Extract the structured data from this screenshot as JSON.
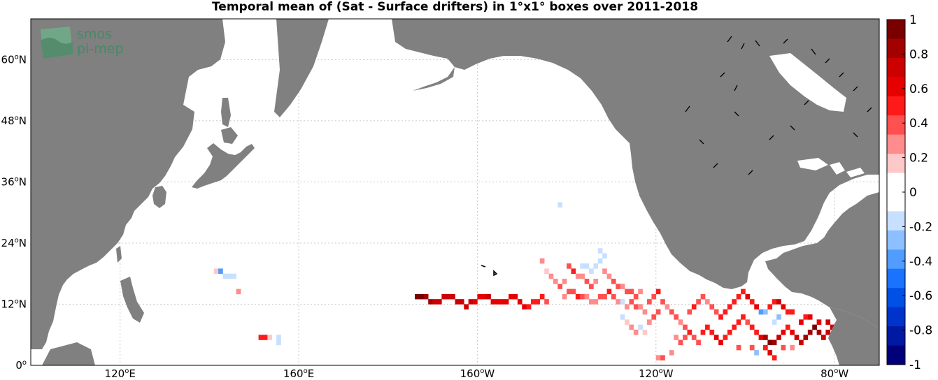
{
  "title": "Temporal mean of (Sat - Surface drifters) in 1°x1° boxes over 2011-2018",
  "logo": {
    "line1": "smos",
    "line2": "pi-mep"
  },
  "map_extent": {
    "lon_min": 100,
    "lon_max": 290,
    "lat_min": 0,
    "lat_max": 68
  },
  "lat_ticks": [
    {
      "value": 0,
      "label": "0",
      "suffix": ""
    },
    {
      "value": 12,
      "label": "12",
      "suffix": "N"
    },
    {
      "value": 24,
      "label": "24",
      "suffix": "N"
    },
    {
      "value": 36,
      "label": "36",
      "suffix": "N"
    },
    {
      "value": 48,
      "label": "48",
      "suffix": "N"
    },
    {
      "value": 60,
      "label": "60",
      "suffix": "N"
    }
  ],
  "lon_ticks": [
    {
      "value": 120,
      "label": "120",
      "suffix": "E"
    },
    {
      "value": 160,
      "label": "160",
      "suffix": "E"
    },
    {
      "value": 200,
      "label": "160",
      "suffix": "W"
    },
    {
      "value": 240,
      "label": "120",
      "suffix": "W"
    },
    {
      "value": 280,
      "label": "80",
      "suffix": "W"
    }
  ],
  "colors": {
    "land": "#808080",
    "coast": "#000000",
    "grid": "#c8c8c8"
  },
  "colorbar": {
    "range": [
      -1,
      1
    ],
    "labels": [
      "1",
      "0.8",
      "0.6",
      "0.4",
      "0.2",
      "0",
      "-0.2",
      "-0.4",
      "-0.6",
      "-0.8",
      "-1"
    ],
    "colors": [
      "#7a0000",
      "#a30000",
      "#cc0000",
      "#e60000",
      "#ff1a1a",
      "#ff5050",
      "#ff8c8c",
      "#ffc8c8",
      "#ffffff",
      "#ffffff",
      "#c8e0ff",
      "#8cbfff",
      "#509cff",
      "#1a73ff",
      "#0050e6",
      "#0033cc",
      "#0019a3",
      "#00007a"
    ]
  },
  "bins": [
    {
      "lon": 186,
      "lat": 13,
      "v": 0.9
    },
    {
      "lon": 187,
      "lat": 13,
      "v": 0.9
    },
    {
      "lon": 188,
      "lat": 13,
      "v": 0.8
    },
    {
      "lon": 189,
      "lat": 12,
      "v": 0.8
    },
    {
      "lon": 190,
      "lat": 12,
      "v": 0.75
    },
    {
      "lon": 191,
      "lat": 12,
      "v": 0.75
    },
    {
      "lon": 192,
      "lat": 13,
      "v": 0.75
    },
    {
      "lon": 193,
      "lat": 13,
      "v": 0.75
    },
    {
      "lon": 194,
      "lat": 13,
      "v": 0.7
    },
    {
      "lon": 195,
      "lat": 12,
      "v": 0.7
    },
    {
      "lon": 196,
      "lat": 12,
      "v": 0.7
    },
    {
      "lon": 197,
      "lat": 11,
      "v": 0.75
    },
    {
      "lon": 198,
      "lat": 12,
      "v": 0.7
    },
    {
      "lon": 199,
      "lat": 12,
      "v": 0.65
    },
    {
      "lon": 200,
      "lat": 13,
      "v": 0.65
    },
    {
      "lon": 201,
      "lat": 13,
      "v": 0.65
    },
    {
      "lon": 202,
      "lat": 13,
      "v": 0.7
    },
    {
      "lon": 203,
      "lat": 12,
      "v": 0.65
    },
    {
      "lon": 204,
      "lat": 12,
      "v": 0.65
    },
    {
      "lon": 205,
      "lat": 12,
      "v": 0.6
    },
    {
      "lon": 206,
      "lat": 12,
      "v": 0.6
    },
    {
      "lon": 207,
      "lat": 13,
      "v": 0.6
    },
    {
      "lon": 208,
      "lat": 13,
      "v": 0.65
    },
    {
      "lon": 209,
      "lat": 12,
      "v": 0.6
    },
    {
      "lon": 210,
      "lat": 11,
      "v": 0.6
    },
    {
      "lon": 211,
      "lat": 11,
      "v": 0.55
    },
    {
      "lon": 212,
      "lat": 12,
      "v": 0.55
    },
    {
      "lon": 213,
      "lat": 12,
      "v": 0.5
    },
    {
      "lon": 214,
      "lat": 13,
      "v": 0.45
    },
    {
      "lon": 215,
      "lat": 12,
      "v": 0.4
    },
    {
      "lon": 141,
      "lat": 18,
      "v": 0.2
    },
    {
      "lon": 142,
      "lat": 18,
      "v": -0.4
    },
    {
      "lon": 143,
      "lat": 17,
      "v": -0.2
    },
    {
      "lon": 144,
      "lat": 17,
      "v": -0.2
    },
    {
      "lon": 145,
      "lat": 17,
      "v": -0.2
    },
    {
      "lon": 146,
      "lat": 14,
      "v": 0.3
    },
    {
      "lon": 151,
      "lat": 5,
      "v": 0.45
    },
    {
      "lon": 152,
      "lat": 5,
      "v": 0.45
    },
    {
      "lon": 153,
      "lat": 5,
      "v": 0.2
    },
    {
      "lon": 155,
      "lat": 5,
      "v": -0.2
    },
    {
      "lon": 155,
      "lat": 4,
      "v": -0.2
    },
    {
      "lon": 218,
      "lat": 31,
      "v": -0.2
    },
    {
      "lon": 214,
      "lat": 20,
      "v": 0.3
    },
    {
      "lon": 215,
      "lat": 18,
      "v": 0.2
    },
    {
      "lon": 216,
      "lat": 17,
      "v": 0.25
    },
    {
      "lon": 217,
      "lat": 16,
      "v": 0.3
    },
    {
      "lon": 218,
      "lat": 15,
      "v": 0.35
    },
    {
      "lon": 219,
      "lat": 16,
      "v": 0.25
    },
    {
      "lon": 220,
      "lat": 19,
      "v": 0.4
    },
    {
      "lon": 221,
      "lat": 18,
      "v": 0.45
    },
    {
      "lon": 222,
      "lat": 17,
      "v": 0.3
    },
    {
      "lon": 223,
      "lat": 19,
      "v": -0.2
    },
    {
      "lon": 224,
      "lat": 19,
      "v": -0.2
    },
    {
      "lon": 225,
      "lat": 18,
      "v": -0.2
    },
    {
      "lon": 226,
      "lat": 19,
      "v": -0.2
    },
    {
      "lon": 227,
      "lat": 20,
      "v": -0.2
    },
    {
      "lon": 228,
      "lat": 21,
      "v": -0.2
    },
    {
      "lon": 227,
      "lat": 22,
      "v": -0.2
    },
    {
      "lon": 223,
      "lat": 17,
      "v": 0.3
    },
    {
      "lon": 224,
      "lat": 16,
      "v": 0.35
    },
    {
      "lon": 225,
      "lat": 15,
      "v": 0.4
    },
    {
      "lon": 226,
      "lat": 16,
      "v": 0.3
    },
    {
      "lon": 228,
      "lat": 18,
      "v": 0.25
    },
    {
      "lon": 229,
      "lat": 17,
      "v": 0.3
    },
    {
      "lon": 230,
      "lat": 16,
      "v": 0.35
    },
    {
      "lon": 231,
      "lat": 15,
      "v": 0.4
    },
    {
      "lon": 232,
      "lat": 15,
      "v": 0.3
    },
    {
      "lon": 233,
      "lat": 14,
      "v": 0.35
    },
    {
      "lon": 234,
      "lat": 14,
      "v": 0.4
    },
    {
      "lon": 235,
      "lat": 13,
      "v": 0.35
    },
    {
      "lon": 236,
      "lat": 14,
      "v": 0.3
    },
    {
      "lon": 219,
      "lat": 13,
      "v": 0.3
    },
    {
      "lon": 220,
      "lat": 14,
      "v": 0.35
    },
    {
      "lon": 221,
      "lat": 14,
      "v": 0.4
    },
    {
      "lon": 222,
      "lat": 13,
      "v": 0.45
    },
    {
      "lon": 223,
      "lat": 13,
      "v": 0.4
    },
    {
      "lon": 224,
      "lat": 13,
      "v": 0.3
    },
    {
      "lon": 225,
      "lat": 12,
      "v": 0.25
    },
    {
      "lon": 226,
      "lat": 12,
      "v": 0.3
    },
    {
      "lon": 227,
      "lat": 13,
      "v": 0.35
    },
    {
      "lon": 228,
      "lat": 13,
      "v": 0.4
    },
    {
      "lon": 229,
      "lat": 14,
      "v": 0.45
    },
    {
      "lon": 230,
      "lat": 13,
      "v": 0.35
    },
    {
      "lon": 231,
      "lat": 12,
      "v": 0.3
    },
    {
      "lon": 232,
      "lat": 12,
      "v": -0.2
    },
    {
      "lon": 233,
      "lat": 11,
      "v": 0.3
    },
    {
      "lon": 234,
      "lat": 12,
      "v": 0.35
    },
    {
      "lon": 235,
      "lat": 11,
      "v": 0.4
    },
    {
      "lon": 236,
      "lat": 11,
      "v": 0.3
    },
    {
      "lon": 237,
      "lat": 10,
      "v": 0.25
    },
    {
      "lon": 232,
      "lat": 9,
      "v": -0.2
    },
    {
      "lon": 233,
      "lat": 8,
      "v": 0.2
    },
    {
      "lon": 234,
      "lat": 7,
      "v": 0.3
    },
    {
      "lon": 235,
      "lat": 6,
      "v": 0.3
    },
    {
      "lon": 236,
      "lat": 7,
      "v": -0.2
    },
    {
      "lon": 237,
      "lat": 6,
      "v": 0.2
    },
    {
      "lon": 238,
      "lat": 8,
      "v": 0.3
    },
    {
      "lon": 239,
      "lat": 9,
      "v": 0.35
    },
    {
      "lon": 240,
      "lat": 10,
      "v": 0.4
    },
    {
      "lon": 238,
      "lat": 12,
      "v": 0.35
    },
    {
      "lon": 239,
      "lat": 13,
      "v": 0.4
    },
    {
      "lon": 240,
      "lat": 14,
      "v": 0.45
    },
    {
      "lon": 241,
      "lat": 12,
      "v": 0.35
    },
    {
      "lon": 242,
      "lat": 11,
      "v": 0.3
    },
    {
      "lon": 243,
      "lat": 10,
      "v": 0.35
    },
    {
      "lon": 244,
      "lat": 9,
      "v": 0.4
    },
    {
      "lon": 245,
      "lat": 8,
      "v": 0.3
    },
    {
      "lon": 246,
      "lat": 7,
      "v": 0.35
    },
    {
      "lon": 247,
      "lat": 10,
      "v": 0.4
    },
    {
      "lon": 248,
      "lat": 11,
      "v": 0.45
    },
    {
      "lon": 249,
      "lat": 12,
      "v": 0.4
    },
    {
      "lon": 250,
      "lat": 13,
      "v": 0.35
    },
    {
      "lon": 251,
      "lat": 12,
      "v": 0.3
    },
    {
      "lon": 252,
      "lat": 11,
      "v": 0.35
    },
    {
      "lon": 253,
      "lat": 10,
      "v": 0.4
    },
    {
      "lon": 254,
      "lat": 9,
      "v": 0.45
    },
    {
      "lon": 255,
      "lat": 10,
      "v": 0.5
    },
    {
      "lon": 256,
      "lat": 11,
      "v": 0.55
    },
    {
      "lon": 257,
      "lat": 12,
      "v": 0.5
    },
    {
      "lon": 258,
      "lat": 13,
      "v": 0.45
    },
    {
      "lon": 259,
      "lat": 14,
      "v": 0.5
    },
    {
      "lon": 260,
      "lat": 13,
      "v": 0.6
    },
    {
      "lon": 261,
      "lat": 12,
      "v": 0.55
    },
    {
      "lon": 262,
      "lat": 11,
      "v": 0.6
    },
    {
      "lon": 263,
      "lat": 10,
      "v": -0.4
    },
    {
      "lon": 264,
      "lat": 10,
      "v": -0.3
    },
    {
      "lon": 265,
      "lat": 11,
      "v": 0.5
    },
    {
      "lon": 266,
      "lat": 12,
      "v": 0.55
    },
    {
      "lon": 267,
      "lat": 12,
      "v": 0.7
    },
    {
      "lon": 268,
      "lat": 11,
      "v": 0.6
    },
    {
      "lon": 269,
      "lat": 10,
      "v": 0.55
    },
    {
      "lon": 270,
      "lat": 10,
      "v": 0.5
    },
    {
      "lon": 244,
      "lat": 5,
      "v": 0.3
    },
    {
      "lon": 245,
      "lat": 4,
      "v": 0.35
    },
    {
      "lon": 246,
      "lat": 5,
      "v": 0.4
    },
    {
      "lon": 247,
      "lat": 6,
      "v": 0.45
    },
    {
      "lon": 248,
      "lat": 5,
      "v": 0.4
    },
    {
      "lon": 249,
      "lat": 4,
      "v": 0.35
    },
    {
      "lon": 250,
      "lat": 6,
      "v": 0.45
    },
    {
      "lon": 251,
      "lat": 7,
      "v": 0.5
    },
    {
      "lon": 252,
      "lat": 6,
      "v": 0.55
    },
    {
      "lon": 253,
      "lat": 5,
      "v": 0.6
    },
    {
      "lon": 254,
      "lat": 4,
      "v": 0.65
    },
    {
      "lon": 255,
      "lat": 5,
      "v": 0.55
    },
    {
      "lon": 256,
      "lat": 6,
      "v": 0.5
    },
    {
      "lon": 257,
      "lat": 7,
      "v": 0.55
    },
    {
      "lon": 258,
      "lat": 8,
      "v": 0.5
    },
    {
      "lon": 259,
      "lat": 9,
      "v": 0.45
    },
    {
      "lon": 260,
      "lat": 8,
      "v": 0.4
    },
    {
      "lon": 261,
      "lat": 7,
      "v": 0.45
    },
    {
      "lon": 262,
      "lat": 6,
      "v": 0.5
    },
    {
      "lon": 263,
      "lat": 5,
      "v": 0.6
    },
    {
      "lon": 264,
      "lat": 5,
      "v": 0.8
    },
    {
      "lon": 265,
      "lat": 4,
      "v": 0.9
    },
    {
      "lon": 266,
      "lat": 4,
      "v": 0.85
    },
    {
      "lon": 267,
      "lat": 5,
      "v": 0.7
    },
    {
      "lon": 268,
      "lat": 6,
      "v": 0.6
    },
    {
      "lon": 269,
      "lat": 7,
      "v": 0.55
    },
    {
      "lon": 270,
      "lat": 6,
      "v": 0.6
    },
    {
      "lon": 271,
      "lat": 5,
      "v": 0.7
    },
    {
      "lon": 272,
      "lat": 4,
      "v": 0.75
    },
    {
      "lon": 273,
      "lat": 5,
      "v": 0.8
    },
    {
      "lon": 274,
      "lat": 6,
      "v": 0.85
    },
    {
      "lon": 275,
      "lat": 7,
      "v": 0.9
    },
    {
      "lon": 276,
      "lat": 6,
      "v": 0.8
    },
    {
      "lon": 277,
      "lat": 5,
      "v": 0.75
    },
    {
      "lon": 278,
      "lat": 6,
      "v": 0.7
    },
    {
      "lon": 279,
      "lat": 7,
      "v": 0.75
    },
    {
      "lon": 280,
      "lat": 6,
      "v": 0.8
    },
    {
      "lon": 281,
      "lat": 5,
      "v": 0.7
    },
    {
      "lon": 282,
      "lat": 6,
      "v": 0.6
    },
    {
      "lon": 272,
      "lat": 8,
      "v": 0.6
    },
    {
      "lon": 273,
      "lat": 9,
      "v": 0.5
    },
    {
      "lon": 274,
      "lat": 9,
      "v": 0.6
    },
    {
      "lon": 276,
      "lat": 8,
      "v": 0.65
    },
    {
      "lon": 278,
      "lat": 8,
      "v": 0.7
    },
    {
      "lon": 266,
      "lat": 8,
      "v": -0.2
    },
    {
      "lon": 267,
      "lat": 9,
      "v": -0.3
    },
    {
      "lon": 264,
      "lat": 3,
      "v": 0.5
    },
    {
      "lon": 261,
      "lat": 3,
      "v": 0.4
    },
    {
      "lon": 258,
      "lat": 3,
      "v": 0.35
    },
    {
      "lon": 262,
      "lat": 2,
      "v": -0.3
    },
    {
      "lon": 265,
      "lat": 2,
      "v": 0.6
    },
    {
      "lon": 266,
      "lat": 1,
      "v": 0.45
    },
    {
      "lon": 268,
      "lat": 3,
      "v": 0.4
    },
    {
      "lon": 270,
      "lat": 3,
      "v": 0.3
    },
    {
      "lon": 240,
      "lat": 1,
      "v": 0.3
    },
    {
      "lon": 241,
      "lat": 1,
      "v": 0.35
    },
    {
      "lon": 243,
      "lat": 2,
      "v": 0.25
    }
  ]
}
